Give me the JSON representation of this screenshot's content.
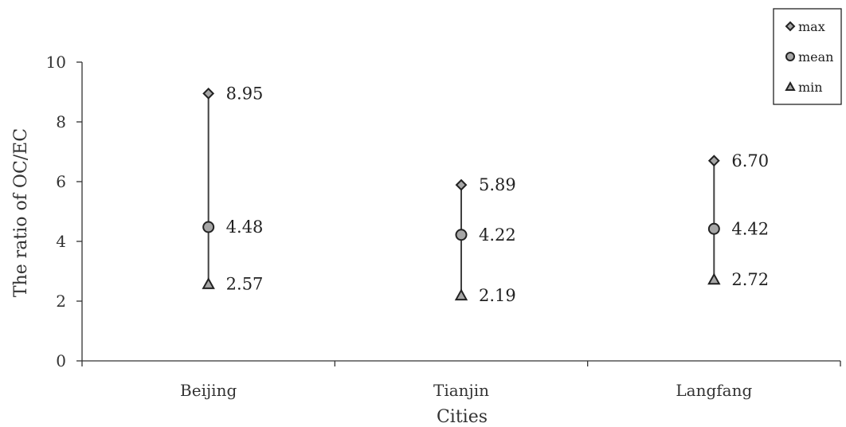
{
  "chart_data": {
    "type": "scatter",
    "title": "",
    "xlabel": "Cities",
    "ylabel": "The ratio of OC/EC",
    "categories": [
      "Beijing",
      "Tianjin",
      "Langfang"
    ],
    "ylim": [
      0,
      10
    ],
    "yticks": [
      "0",
      "2",
      "4",
      "6",
      "8",
      "10"
    ],
    "grid": false,
    "legend_position": "top-right",
    "series": [
      {
        "name": "max",
        "marker": "diamond",
        "values": [
          8.95,
          5.89,
          6.7
        ],
        "labels": [
          "8.95",
          "5.89",
          "6.70"
        ]
      },
      {
        "name": "mean",
        "marker": "circle",
        "values": [
          4.48,
          4.22,
          4.42
        ],
        "labels": [
          "4.48",
          "4.22",
          "4.42"
        ]
      },
      {
        "name": "min",
        "marker": "triangle",
        "values": [
          2.57,
          2.19,
          2.72
        ],
        "labels": [
          "2.57",
          "2.19",
          "2.72"
        ]
      }
    ],
    "colors": {
      "marker_fill": "#a6a6a6",
      "marker_stroke": "#222222",
      "line": "#404040",
      "axis": "#333333"
    }
  }
}
